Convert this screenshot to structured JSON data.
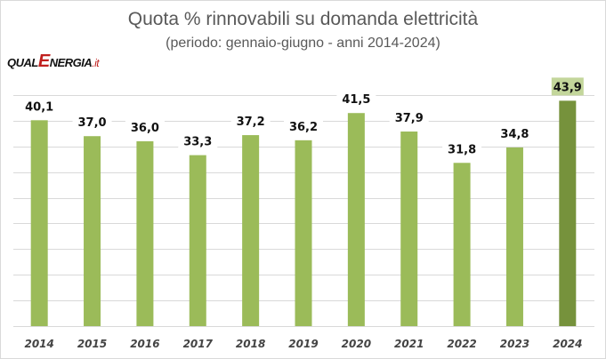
{
  "chart_data": {
    "type": "bar",
    "title": "Quota % rinnovabili su domanda elettricità",
    "subtitle": "(periodo: gennaio-giugno - anni 2014-2024)",
    "xlabel": "",
    "ylabel": "",
    "categories": [
      "2014",
      "2015",
      "2016",
      "2017",
      "2018",
      "2019",
      "2020",
      "2021",
      "2022",
      "2023",
      "2024"
    ],
    "values": [
      40.1,
      37.0,
      36.0,
      33.3,
      37.2,
      36.2,
      41.5,
      37.9,
      31.8,
      34.8,
      43.9
    ],
    "data_labels": [
      "40,1",
      "37,0",
      "36,0",
      "33,3",
      "37,2",
      "36,2",
      "41,5",
      "37,9",
      "31,8",
      "34,8",
      "43,9"
    ],
    "ylim": [
      0,
      45
    ],
    "ytick_step": 5,
    "y_tick_labels_visible": false,
    "grid": true,
    "legend": "none",
    "highlight_index": 10,
    "colors": {
      "bar": "#9bbb59",
      "highlight_bar": "#76923c",
      "highlight_label_bg": "#c3d69b",
      "grid": "#d9d9d9"
    }
  },
  "branding": {
    "logo_part1": "QUAL",
    "logo_part2": "E",
    "logo_part3": "NERGIA",
    "logo_part4": ".it"
  }
}
